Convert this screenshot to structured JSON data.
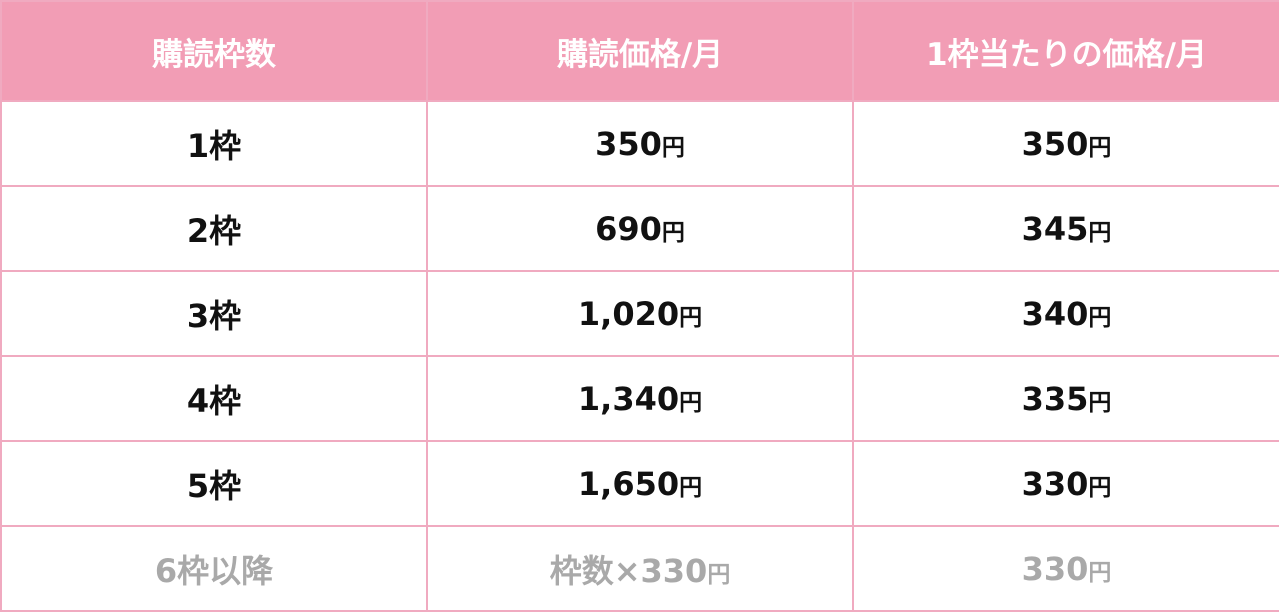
{
  "headers": [
    "購読枠数",
    "購読価格/月",
    "1枠当たりの価格/月"
  ],
  "rows": [
    {
      "slots": "1枠",
      "price": "350",
      "price_unit": "円",
      "per_slot": "350",
      "per_slot_unit": "円"
    },
    {
      "slots": "2枠",
      "price": "690",
      "price_unit": "円",
      "per_slot": "345",
      "per_slot_unit": "円"
    },
    {
      "slots": "3枠",
      "price": "1,020",
      "price_unit": "円",
      "per_slot": "340",
      "per_slot_unit": "円"
    },
    {
      "slots": "4枠",
      "price": "1,340",
      "price_unit": "円",
      "per_slot": "335",
      "per_slot_unit": "円"
    },
    {
      "slots": "5枠",
      "price": "1,650",
      "price_unit": "円",
      "per_slot": "330",
      "per_slot_unit": "円"
    },
    {
      "slots": "6枠以降",
      "price": "枠数×330",
      "price_unit": "円",
      "per_slot": "330",
      "per_slot_unit": "円"
    }
  ],
  "colors": {
    "header_bg": "#f29db5",
    "border": "#f0aac0",
    "muted_text": "#a9a9a9"
  }
}
